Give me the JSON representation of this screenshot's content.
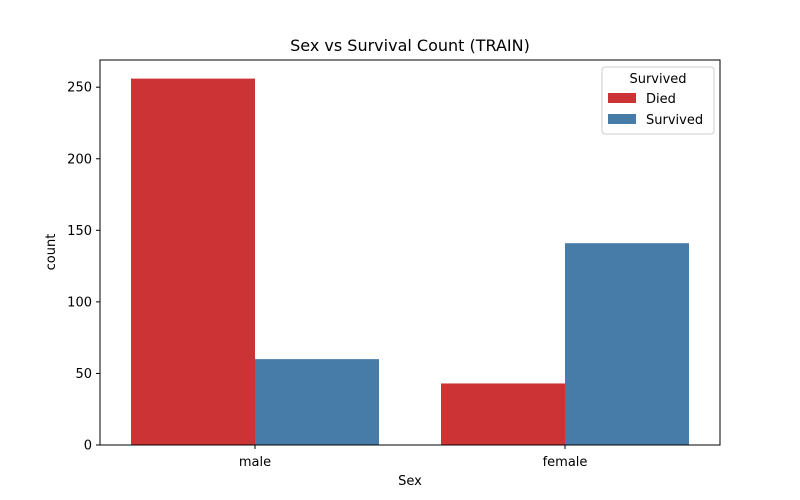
{
  "chart_data": {
    "type": "bar",
    "title": "Sex vs Survival Count (TRAIN)",
    "xlabel": "Sex",
    "ylabel": "count",
    "categories": [
      "male",
      "female"
    ],
    "series": [
      {
        "name": "Died",
        "values": [
          256,
          43
        ],
        "color": "#cb3335"
      },
      {
        "name": "Survived",
        "values": [
          60,
          141
        ],
        "color": "#477ca8"
      }
    ],
    "ylim": [
      0,
      269
    ],
    "yticks": [
      0,
      50,
      100,
      150,
      200,
      250
    ],
    "legend": {
      "title": "Survived",
      "placement": "top-right"
    },
    "grid": false
  }
}
